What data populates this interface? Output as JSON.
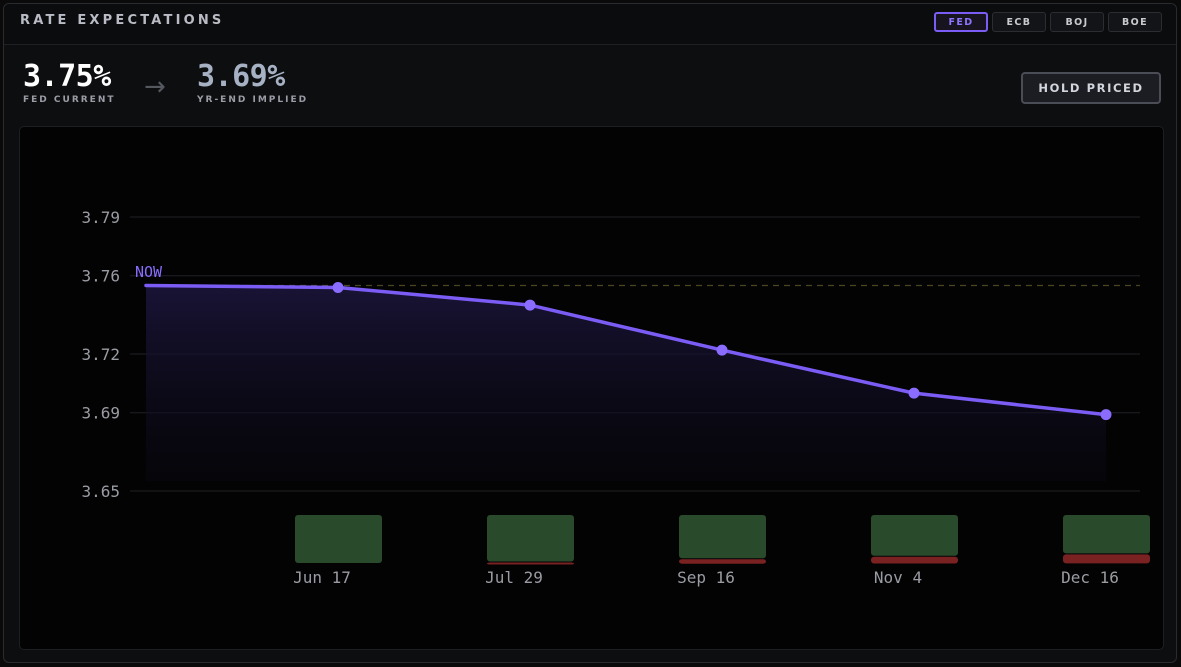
{
  "header": {
    "title": "RATE EXPECTATIONS",
    "tabs": [
      {
        "label": "FED",
        "active": true
      },
      {
        "label": "ECB",
        "active": false
      },
      {
        "label": "BOJ",
        "active": false
      },
      {
        "label": "BOE",
        "active": false
      }
    ]
  },
  "stats": {
    "current_value": "3.75%",
    "current_label": "FED CURRENT",
    "arrow_icon": "arrow-right-icon",
    "implied_value": "3.69%",
    "implied_label": "YR-END IMPLIED",
    "hold_button": "HOLD PRICED"
  },
  "colors": {
    "accent": "#7b5cf5",
    "hold_bar": "#2a4a2c",
    "cut_bar": "#7a2222",
    "baseline": "#4a4620"
  },
  "chart_data": {
    "type": "line",
    "yticks": [
      3.79,
      3.76,
      3.72,
      3.69,
      3.65
    ],
    "ylim": [
      3.65,
      3.79
    ],
    "now_label": "NOW",
    "now_value": 3.755,
    "series": [
      {
        "x": [
          "NOW",
          "Jun 17",
          "Jul 29",
          "Sep 16",
          "Nov 4",
          "Dec 16"
        ],
        "values": [
          3.755,
          3.754,
          3.745,
          3.722,
          3.7,
          3.689
        ]
      }
    ],
    "meetings": [
      {
        "label": "Jun 17",
        "hold_prob": 1.0,
        "cut_prob": 0.0
      },
      {
        "label": "Jul 29",
        "hold_prob": 0.97,
        "cut_prob": 0.03
      },
      {
        "label": "Sep 16",
        "hold_prob": 0.9,
        "cut_prob": 0.1
      },
      {
        "label": "Nov 4",
        "hold_prob": 0.85,
        "cut_prob": 0.15
      },
      {
        "label": "Dec 16",
        "hold_prob": 0.8,
        "cut_prob": 0.2
      }
    ]
  }
}
